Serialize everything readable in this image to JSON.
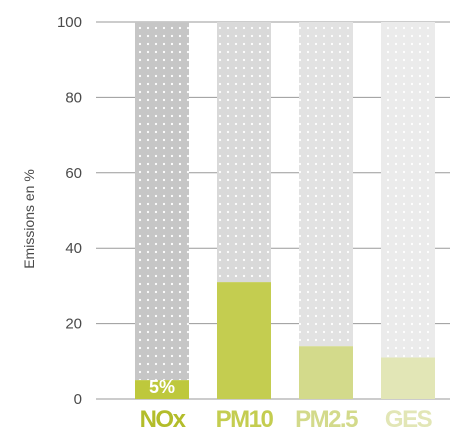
{
  "chart_data": {
    "type": "bar",
    "stacked": true,
    "categories": [
      "NOx",
      "PM10",
      "PM2.5",
      "GES"
    ],
    "series": [
      {
        "values": [
          5,
          31,
          14,
          11
        ]
      },
      {
        "values": [
          95,
          69,
          86,
          89
        ]
      }
    ],
    "ylabel": "Emissions en %",
    "xlabel": "",
    "ylim": [
      0,
      100
    ],
    "yticks": [
      0,
      20,
      40,
      60,
      80,
      100
    ],
    "grid": true,
    "data_labels": [
      {
        "category": "NOx",
        "text": "5%"
      }
    ],
    "colors": {
      "highlight": [
        "#bec83c",
        "#c4cd50",
        "#d3da8b",
        "#e2e6b6"
      ],
      "remainder": [
        "#c6c6c6",
        "#d9d9d9",
        "#e2e2e2",
        "#ebebeb"
      ],
      "category_labels": [
        "#b3bd2a",
        "#c4cd50",
        "#d3da8b",
        "#e2e6b6"
      ],
      "gridline": "#9a9a9a",
      "dots": "#ffffff"
    }
  }
}
